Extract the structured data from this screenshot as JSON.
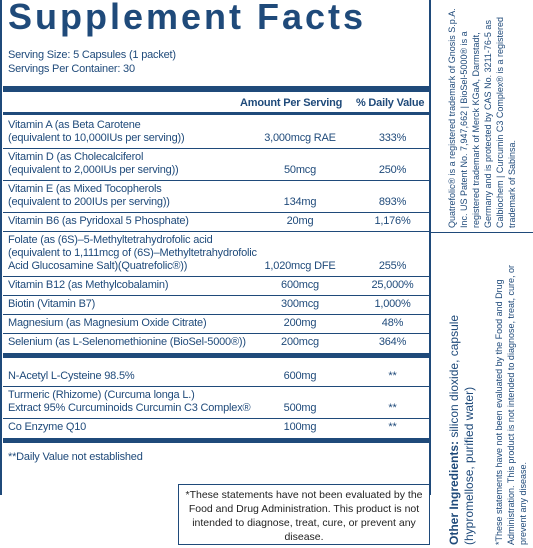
{
  "header": {
    "title": "Supplement Facts",
    "serving_size": "Serving Size: 5 Capsules (1 packet)",
    "servings_per_container": "Servings Per Container: 30"
  },
  "table": {
    "columns": [
      "Amount Per Serving",
      "% Daily Value"
    ],
    "sections": [
      [
        {
          "name": [
            "Vitamin A (as Beta Carotene",
            "(equivalent to 10,000IUs per serving))"
          ],
          "amount": "3,000mcg RAE",
          "daily_value": "333%"
        },
        {
          "name": [
            "Vitamin D (as Cholecalciferol",
            "(equivalent to 2,000IUs per serving))"
          ],
          "amount": "50mcg",
          "daily_value": "250%"
        },
        {
          "name": [
            "Vitamin E (as Mixed Tocopherols",
            "(equivalent to 200IUs per serving))"
          ],
          "amount": "134mg",
          "daily_value": "893%"
        },
        {
          "name": [
            "Vitamin B6 (as Pyridoxal 5 Phosphate)"
          ],
          "amount": "20mg",
          "daily_value": "1,176%"
        },
        {
          "name": [
            "Folate (as (6S)–5-Methyltetrahydrofolic acid",
            "(equivalent to 1,111mcg of (6S)–Methyltetrahydrofolic",
            "Acid Glucosamine Salt)(Quatrefolic®))"
          ],
          "amount": "1,020mcg DFE",
          "daily_value": "255%"
        },
        {
          "name": [
            "Vitamin B12 (as Methylcobalamin)"
          ],
          "amount": "600mcg",
          "daily_value": "25,000%"
        },
        {
          "name": [
            "Biotin (Vitamin B7)"
          ],
          "amount": "300mcg",
          "daily_value": "1,000%"
        },
        {
          "name": [
            "Magnesium (as Magnesium Oxide Citrate)"
          ],
          "amount": "200mg",
          "daily_value": "48%"
        },
        {
          "name": [
            "Selenium (as L-Selenomethionine (BioSel-5000®))"
          ],
          "amount": "200mcg",
          "daily_value": "364%"
        }
      ],
      [
        {
          "name": [
            "N-Acetyl L-Cysteine 98.5%"
          ],
          "amount": "600mg",
          "daily_value": "**"
        },
        {
          "name": [
            "Turmeric (Rhizome) (Curcuma longa L.)",
            "Extract 95% Curcuminoids Curcumin C3 Complex®"
          ],
          "amount": "500mg",
          "daily_value": "**"
        },
        {
          "name": [
            "Co Enzyme Q10"
          ],
          "amount": "100mg",
          "daily_value": "**"
        }
      ]
    ]
  },
  "footnote": "**Daily Value not established",
  "disclaimer_box": "*These statements have not been evaluated by the Food and Drug Administration. This product is not intended to diagnose, treat, cure, or prevent any disease.",
  "side": {
    "trademarks": "Quatrefolic® is a registered trademark of Gnosis S.p.A. Inc. US Patent No. 7,947,662 | BioSel-5000® is a registered trademark of Merck KGaA, Darmstadt, Germany and is protected by CAS No. 3211-76-5 as Calbiochem | Curcumin C3 Complex® is a registered trademark of Sabinsa.",
    "other_ingredients_label": "Other Ingredients:",
    "other_ingredients": "silicon dioxide, capsule (hypromellose, purified water)",
    "disclaimer": "*These statements have not been evaluated by the Food and Drug Administration. This product is not intended to diagnose, treat, cure, or prevent any disease."
  }
}
